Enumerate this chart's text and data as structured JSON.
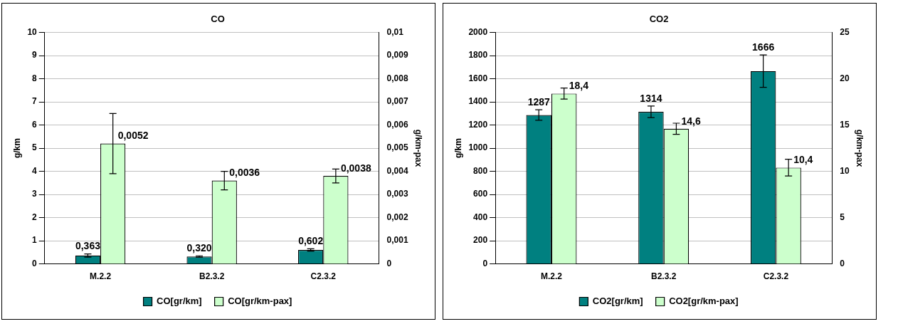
{
  "chart_data": [
    {
      "type": "bar",
      "title": "CO",
      "ylabel": "g/km",
      "y2label": "g/km-pax",
      "categories": [
        "M.2.2",
        "B2.3.2",
        "C2.3.2"
      ],
      "series": [
        {
          "name": "CO[gr/km]",
          "color": "#008080",
          "values": [
            0.363,
            0.32,
            0.602
          ],
          "errors": [
            0.07,
            0.03,
            0.05
          ],
          "value_labels": [
            "0,363",
            "0,320",
            "0,602"
          ]
        },
        {
          "name": "CO[gr/km-pax]",
          "color": "#ccffcc",
          "axis": "y2",
          "values": [
            0.0052,
            0.0036,
            0.0038
          ],
          "errors": [
            0.0013,
            0.0004,
            0.0003
          ],
          "value_labels": [
            "0,0052",
            "0,0036",
            "0,0038"
          ]
        }
      ],
      "ylim": [
        0,
        10
      ],
      "yticks": [
        0,
        1,
        2,
        3,
        4,
        5,
        6,
        7,
        8,
        9,
        10
      ],
      "y2lim": [
        0,
        0.01
      ],
      "y2ticks": [
        0,
        {
          "value": 0.001,
          "label": "0,001"
        },
        {
          "value": 0.002,
          "label": "0,002"
        },
        {
          "value": 0.003,
          "label": "0,003"
        },
        {
          "value": 0.004,
          "label": "0,004"
        },
        {
          "value": 0.005,
          "label": "0,005"
        },
        {
          "value": 0.006,
          "label": "0,006"
        },
        {
          "value": 0.007,
          "label": "0,007"
        },
        {
          "value": 0.008,
          "label": "0,008"
        },
        {
          "value": 0.009,
          "label": "0,009"
        },
        {
          "value": 0.01,
          "label": "0,01"
        }
      ],
      "grid": "y",
      "legend": "bottom"
    },
    {
      "type": "bar",
      "title": "CO2",
      "ylabel": "g/km",
      "y2label": "g/km-pax",
      "categories": [
        "M.2.2",
        "B2.3.2",
        "C2.3.2"
      ],
      "series": [
        {
          "name": "CO2[gr/km]",
          "color": "#008080",
          "values": [
            1287,
            1314,
            1666
          ],
          "errors": [
            45,
            50,
            140
          ],
          "value_labels": [
            "1287",
            "1314",
            "1666"
          ]
        },
        {
          "name": "CO2[gr/km-pax]",
          "color": "#ccffcc",
          "axis": "y2",
          "values": [
            18.4,
            14.6,
            10.4
          ],
          "errors": [
            0.6,
            0.6,
            0.9
          ],
          "value_labels": [
            "18,4",
            "14,6",
            "10,4"
          ]
        }
      ],
      "ylim": [
        0,
        2000
      ],
      "yticks": [
        0,
        200,
        400,
        600,
        800,
        1000,
        1200,
        1400,
        1600,
        1800,
        2000
      ],
      "y2lim": [
        0,
        25
      ],
      "y2ticks": [
        0,
        5,
        10,
        15,
        20,
        25
      ],
      "grid": "y",
      "legend": "bottom"
    }
  ]
}
